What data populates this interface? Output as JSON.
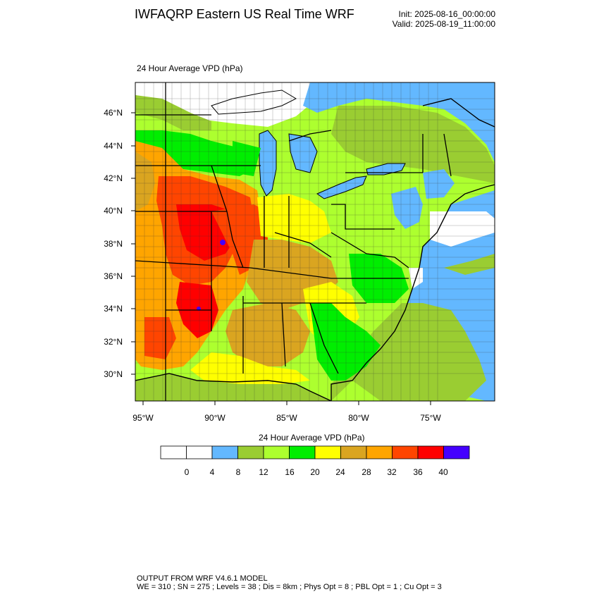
{
  "header": {
    "title": "IWFAQRP Eastern US Real Time WRF",
    "init": "Init: 2025-08-16_00:00:00",
    "valid": "Valid: 2025-08-19_11:00:00"
  },
  "field_label": "24 Hour Average VPD   (hPa)",
  "axes": {
    "lat_labels": [
      "46°N",
      "44°N",
      "42°N",
      "40°N",
      "38°N",
      "36°N",
      "34°N",
      "32°N",
      "30°N"
    ],
    "lon_labels": [
      "95°W",
      "90°W",
      "85°W",
      "80°W",
      "75°W"
    ]
  },
  "colorbar": {
    "title": "24 Hour Average VPD  (hPa)",
    "tick_labels": [
      "0",
      "4",
      "8",
      "12",
      "16",
      "20",
      "24",
      "28",
      "32",
      "36",
      "40"
    ],
    "colors": [
      "#ffffff",
      "#ffffff",
      "#63b8ff",
      "#9acd32",
      "#adff2f",
      "#00ee00",
      "#ffff00",
      "#daa520",
      "#ffa500",
      "#ff4500",
      "#ff0000",
      "#4400ff"
    ]
  },
  "colors": {
    "water": "#63b8ff",
    "ocean_low": "#9acd32"
  },
  "footer": {
    "line1": "OUTPUT FROM WRF V4.6.1 MODEL",
    "line2": "WE = 310 ; SN = 275 ; Levels = 38 ; Dis = 8km ; Phys Opt = 8 ; PBL Opt = 1 ; Cu Opt = 3"
  }
}
